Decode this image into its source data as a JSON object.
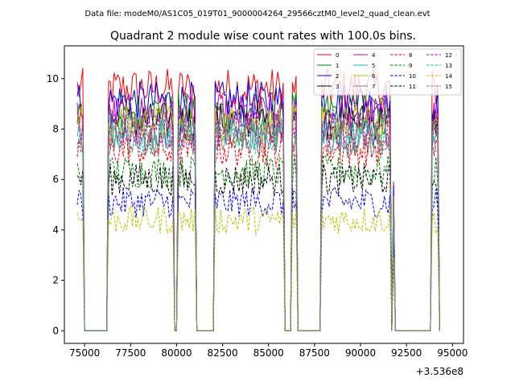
{
  "suptitle": "Data file: modeM0/AS1C05_019T01_9000004264_29566cztM0_level2_quad_clean.evt",
  "chart_data": {
    "type": "line",
    "title": "Quadrant 2 module wise count rates with 100.0s bins.",
    "xlabel": "",
    "ylabel": "",
    "x_offset_label": "+3.536e8",
    "xlim": [
      73900,
      95600
    ],
    "ylim": [
      -0.5,
      11.3
    ],
    "x_ticks": [
      75000,
      77500,
      80000,
      82500,
      85000,
      87500,
      90000,
      92500,
      95000
    ],
    "x_tick_labels": [
      "75000",
      "77500",
      "80000",
      "82500",
      "85000",
      "87500",
      "90000",
      "92500",
      "95000"
    ],
    "y_ticks": [
      0,
      2,
      4,
      6,
      8,
      10
    ],
    "y_tick_labels": [
      "0",
      "2",
      "4",
      "6",
      "8",
      "10"
    ],
    "grid": false,
    "legend_position": "top-right",
    "legend_columns": 4,
    "time_segments": [
      {
        "start": 74600,
        "end": 74950,
        "base": "high"
      },
      {
        "start": 76300,
        "end": 79800,
        "base": "high"
      },
      {
        "start": 80100,
        "end": 81000,
        "base": "high"
      },
      {
        "start": 82100,
        "end": 85800,
        "base": "high"
      },
      {
        "start": 86300,
        "end": 86550,
        "base": "high"
      },
      {
        "start": 87850,
        "end": 91600,
        "base": "high"
      },
      {
        "start": 91750,
        "end": 91800,
        "base": "low"
      },
      {
        "start": 93850,
        "end": 94250,
        "base": "high"
      }
    ],
    "series": [
      {
        "name": "0",
        "color": "#ff0000",
        "dash": "solid",
        "level": 9.6
      },
      {
        "name": "1",
        "color": "#008000",
        "dash": "solid",
        "level": 8.7
      },
      {
        "name": "2",
        "color": "#0000ff",
        "dash": "solid",
        "level": 9.1
      },
      {
        "name": "3",
        "color": "#000000",
        "dash": "solid",
        "level": 8.3
      },
      {
        "name": "4",
        "color": "#bf00bf",
        "dash": "solid",
        "level": 8.6
      },
      {
        "name": "5",
        "color": "#1fb3b3",
        "dash": "solid",
        "level": 7.9
      },
      {
        "name": "6",
        "color": "#bfbf00",
        "dash": "solid",
        "level": 8.2
      },
      {
        "name": "7",
        "color": "#7f7f7f",
        "dash": "solid",
        "level": 7.6
      },
      {
        "name": "8",
        "color": "#ff0000",
        "dash": "dashed",
        "level": 7.2
      },
      {
        "name": "9",
        "color": "#008000",
        "dash": "dashed",
        "level": 6.3
      },
      {
        "name": "10",
        "color": "#0000ff",
        "dash": "dashed",
        "level": 5.1
      },
      {
        "name": "11",
        "color": "#000000",
        "dash": "dashed",
        "level": 6.0
      },
      {
        "name": "12",
        "color": "#bf00bf",
        "dash": "dashed",
        "level": 8.0
      },
      {
        "name": "13",
        "color": "#1fb3b3",
        "dash": "dashed",
        "level": 7.7
      },
      {
        "name": "14",
        "color": "#bfbf00",
        "dash": "dashed",
        "level": 4.4
      },
      {
        "name": "15",
        "color": "#7f7f7f",
        "dash": "dashed",
        "level": 8.1
      }
    ]
  }
}
